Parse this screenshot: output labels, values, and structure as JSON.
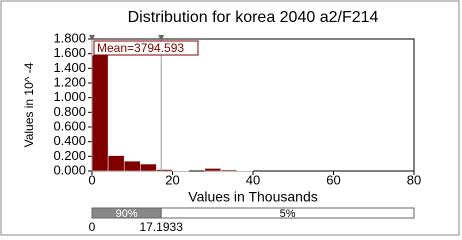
{
  "chart_data": {
    "type": "histogram",
    "title": "Distribution for korea 2040 a2/F214",
    "ylabel": "Values in 10^ -4",
    "xlabel": "Values in Thousands",
    "bins": [
      0,
      4,
      8,
      12,
      16,
      20,
      24,
      28,
      32,
      36,
      40
    ],
    "values": [
      1.58,
      0.21,
      0.135,
      0.095,
      0.02,
      0.005,
      0,
      0.035,
      0.015,
      0.005
    ],
    "color": "#800000",
    "xlim": [
      0,
      80
    ],
    "xticks": [
      0,
      20,
      40,
      60,
      80
    ],
    "ylim": [
      0,
      1.8
    ],
    "yticks": [
      {
        "value": 0,
        "label": "0.000"
      },
      {
        "value": 0.2,
        "label": "0.200"
      },
      {
        "value": 0.4,
        "label": "0.400"
      },
      {
        "value": 0.6,
        "label": "0.600"
      },
      {
        "value": 0.8,
        "label": "0.800"
      },
      {
        "value": 1,
        "label": "1.000"
      },
      {
        "value": 1.2,
        "label": "1.200"
      },
      {
        "value": 1.4,
        "label": "1.400"
      },
      {
        "value": 1.6,
        "label": "1.600"
      },
      {
        "value": 1.8,
        "label": "1.800"
      }
    ],
    "annotation": "Mean=3794.593",
    "delimiters": [
      0,
      17.1933
    ],
    "percentiles": [
      {
        "value": 90,
        "label": "90%"
      },
      {
        "value": 5,
        "label": "5%"
      }
    ]
  }
}
